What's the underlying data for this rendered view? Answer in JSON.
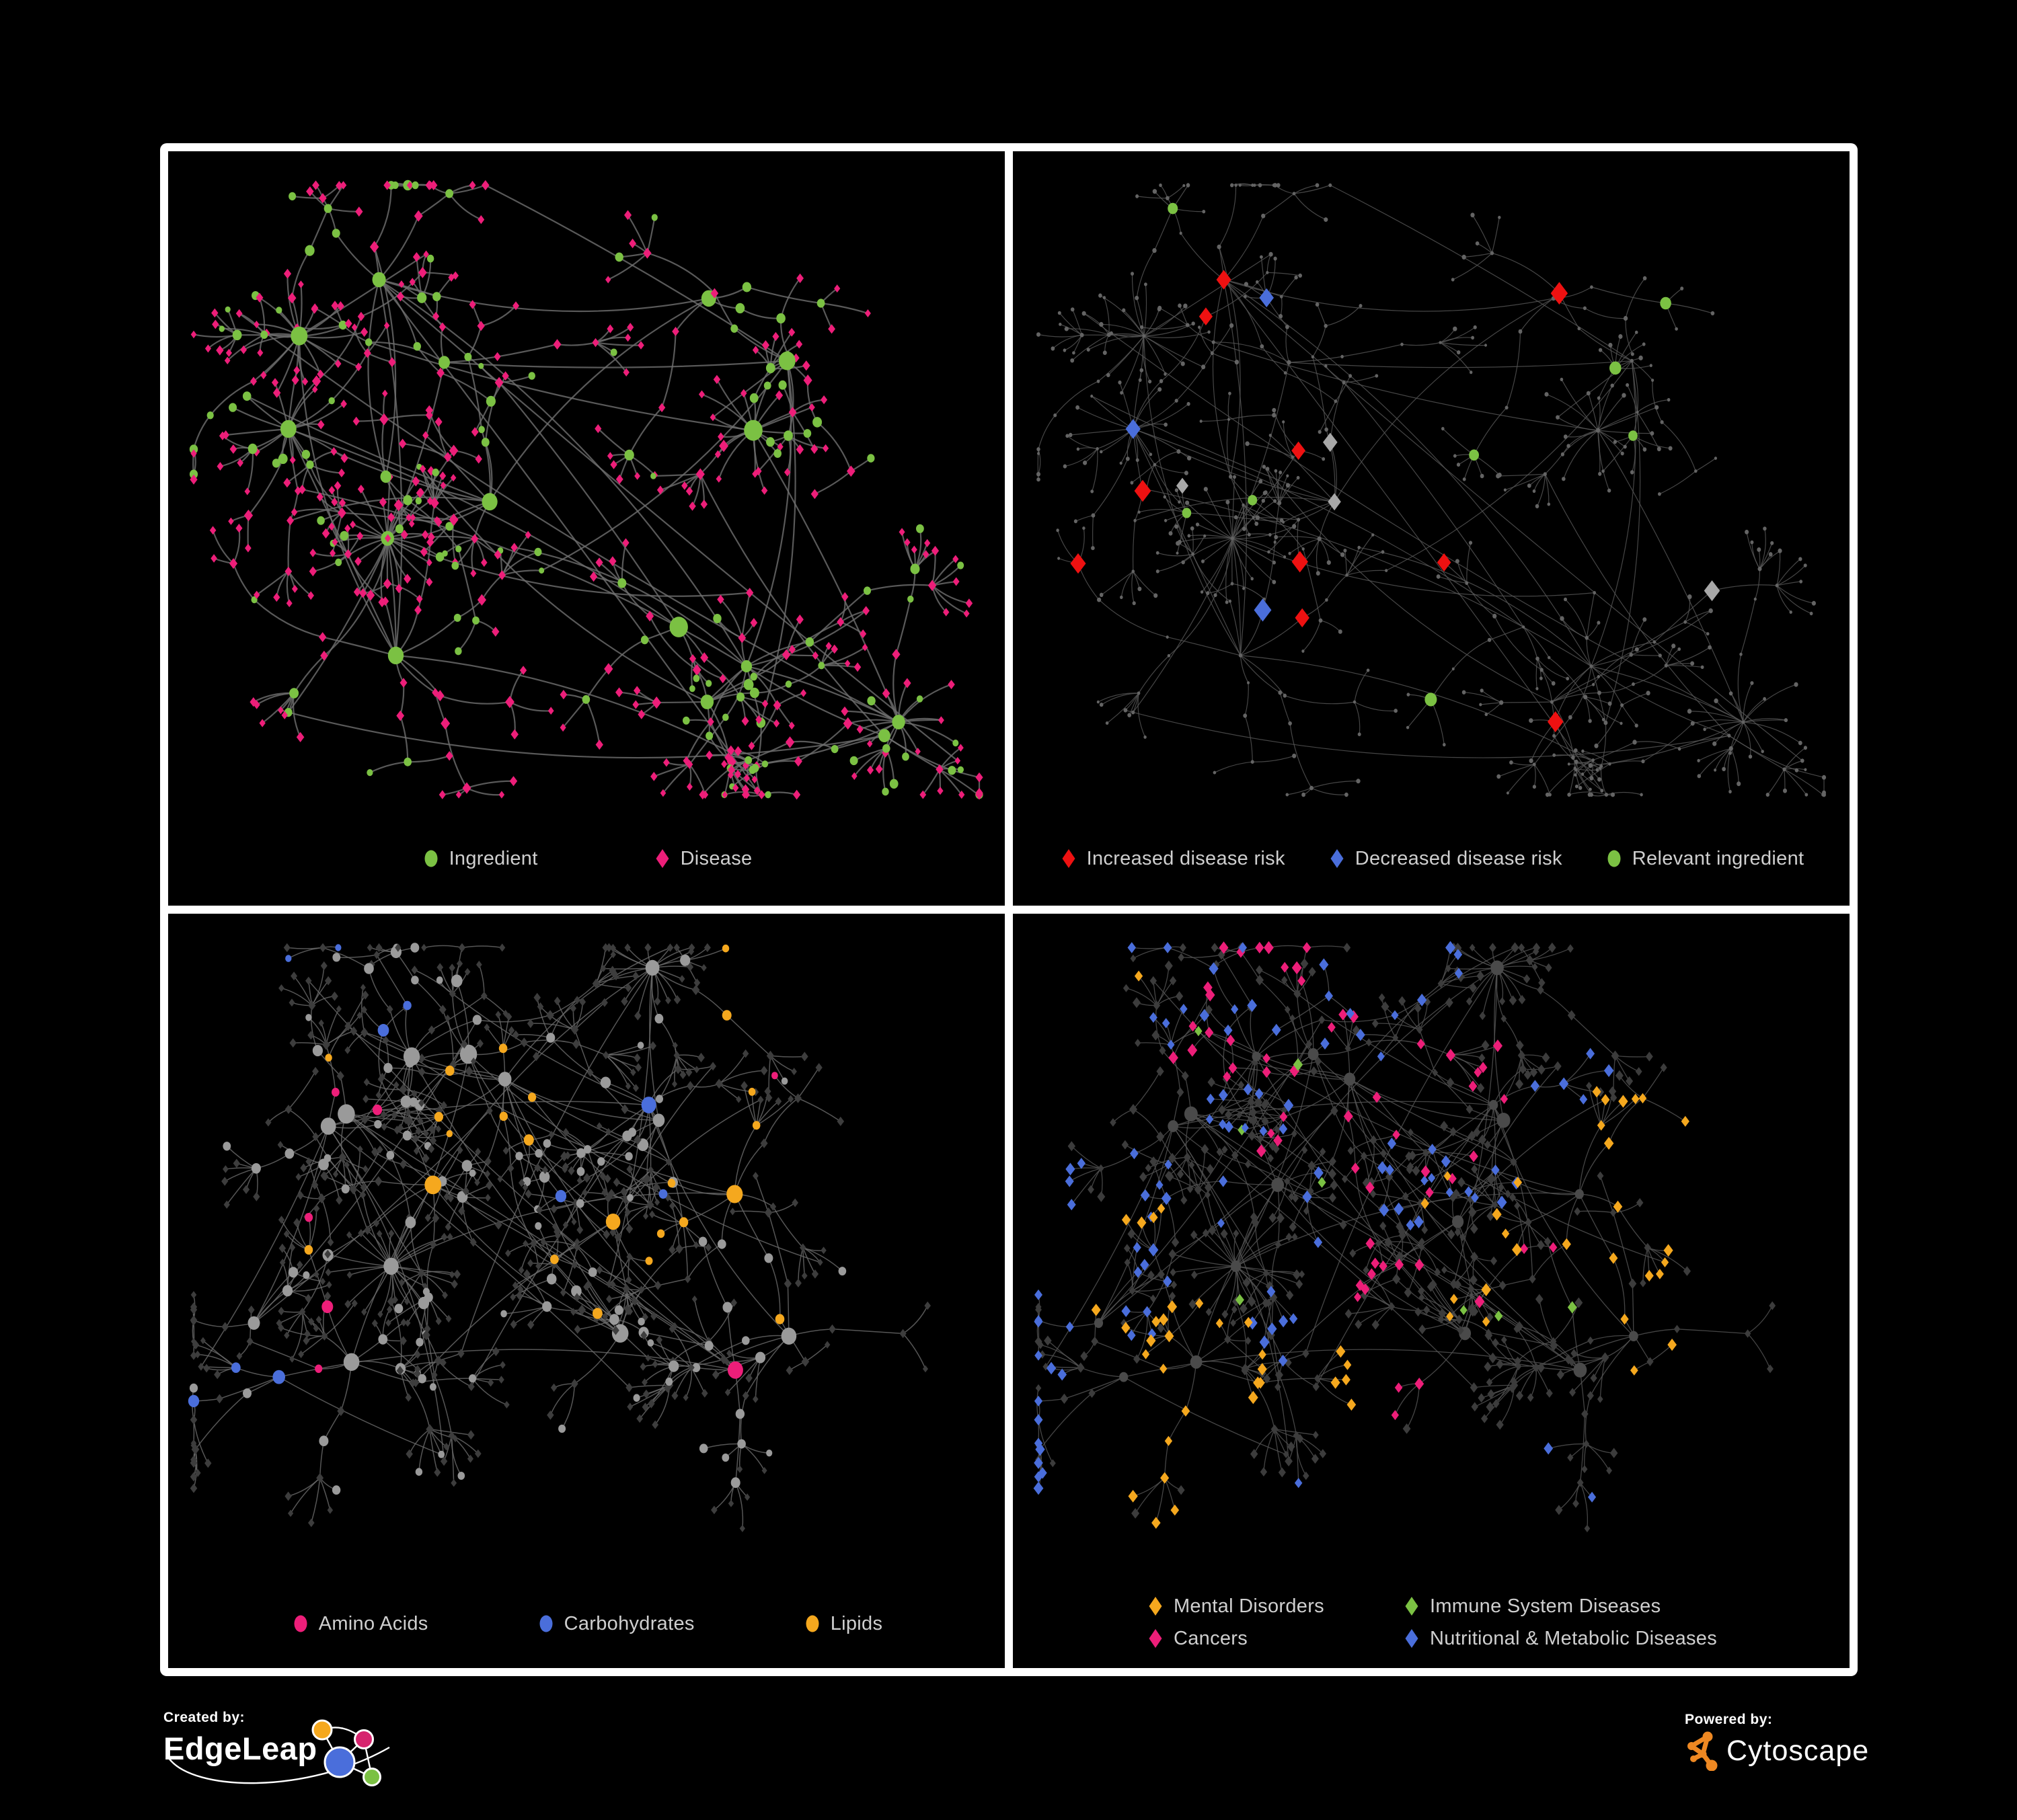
{
  "figure": {
    "background": "#000000",
    "frame_color": "#ffffff",
    "panels": [
      {
        "id": "ingredient-disease",
        "legend": [
          {
            "shape": "circle",
            "color": "#7bc143",
            "label": "Ingredient"
          },
          {
            "shape": "diamond",
            "color": "#ed1e79",
            "label": "Disease"
          }
        ],
        "network": {
          "seed": 11,
          "hubs": 16,
          "type": "bipartite",
          "edge_width": 2.2,
          "palette": {
            "ingredient": "#7bc143",
            "disease": "#ed1e79",
            "edge": "#6f6f6f"
          }
        }
      },
      {
        "id": "disease-risk",
        "legend": [
          {
            "shape": "diamond",
            "color": "#ee1111",
            "label": "Increased disease risk"
          },
          {
            "shape": "diamond",
            "color": "#4a6edb",
            "label": "Decreased disease risk"
          },
          {
            "shape": "circle",
            "color": "#7bc143",
            "label": "Relevant ingredient"
          }
        ],
        "network": {
          "seed": 11,
          "hubs": 16,
          "type": "highlight",
          "edge_width": 1.2,
          "palette": {
            "base": "#646464",
            "edge": "#575757",
            "increased": "#ee1111",
            "decreased": "#4a6edb",
            "neutral": "#a8a8a8",
            "ingredient": "#7bc143"
          }
        }
      },
      {
        "id": "nutrient-classes",
        "legend": [
          {
            "shape": "circle",
            "color": "#ed1e79",
            "label": "Amino Acids"
          },
          {
            "shape": "circle",
            "color": "#4a6edb",
            "label": "Carbohydrates"
          },
          {
            "shape": "circle",
            "color": "#f5a81e",
            "label": "Lipids"
          }
        ],
        "network": {
          "seed": 47,
          "hubs": 18,
          "type": "metabolites",
          "edge_width": 1.5,
          "palette": {
            "gray": "#9a9a9a",
            "dark": "#3d3d3d",
            "edge": "#6b6b6b",
            "amino": "#ed1e79",
            "carb": "#4a6edb",
            "lipid": "#f5a81e"
          }
        }
      },
      {
        "id": "disease-classes",
        "legend": [
          {
            "shape": "diamond",
            "color": "#f5a81e",
            "label": "Mental Disorders"
          },
          {
            "shape": "diamond",
            "color": "#7bc143",
            "label": "Immune System Diseases"
          },
          {
            "shape": "diamond",
            "color": "#ed1e79",
            "label": "Cancers"
          },
          {
            "shape": "diamond",
            "color": "#4a6edb",
            "label": "Nutritional & Metabolic Diseases"
          }
        ],
        "network": {
          "seed": 47,
          "hubs": 18,
          "type": "diseases",
          "edge_width": 1.3,
          "palette": {
            "dark": "#3c3c3c",
            "hub": "#4a4a4a",
            "edge": "#565656",
            "mental": "#f5a81e",
            "immune": "#7bc143",
            "cancer": "#ed1e79",
            "metabolic": "#4a6edb"
          }
        }
      }
    ],
    "footer": {
      "created_by": "Created by:",
      "edgeleap": "EdgeLeap",
      "powered_by": "Powered by:",
      "cytoscape": "Cytoscape",
      "edgeleap_colors": {
        "orange": "#f5a81e",
        "magenta": "#d6246e",
        "blue": "#4a6edb",
        "green": "#7bc143"
      },
      "cytoscape_orange": "#ee8822"
    }
  }
}
